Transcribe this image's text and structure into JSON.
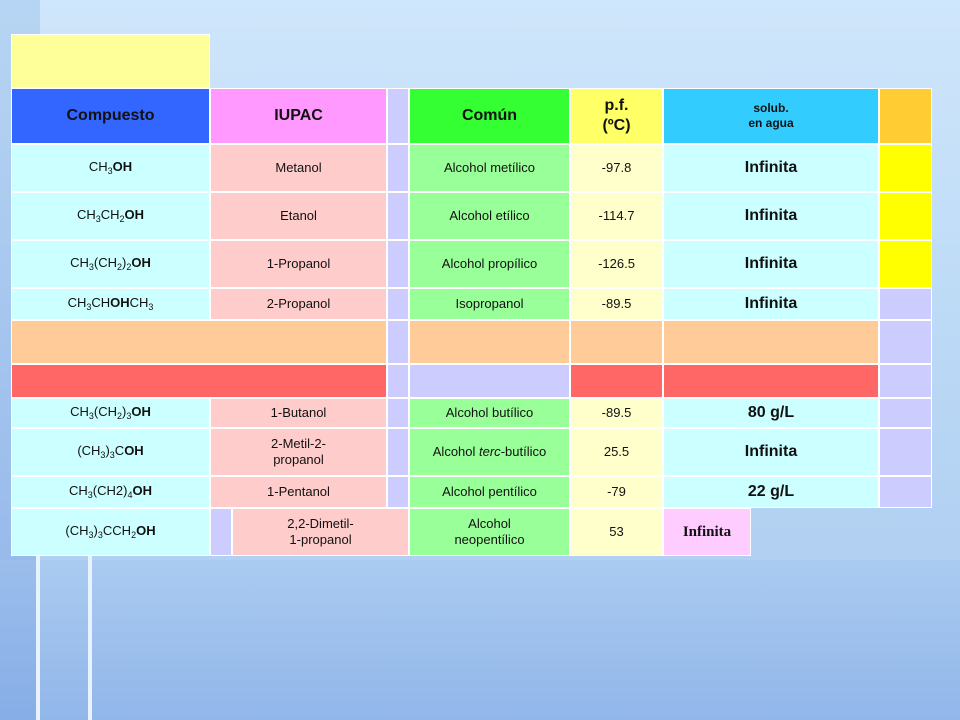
{
  "headers": {
    "compound": "Compuesto",
    "iupac": "IUPAC",
    "common": "Común",
    "mp_line1": "p.f.",
    "mp_line2": "(ºC)",
    "solub_line1": "solub.",
    "solub_line2": "en agua"
  },
  "rows": [
    {
      "formula_html": "CH<sub>3</sub><b>OH</b>",
      "iupac": "Metanol",
      "common": "Alcohol metílico",
      "mp": "-97.8",
      "solub": "Infinita"
    },
    {
      "formula_html": "CH<sub>3</sub>CH<sub>2</sub><b>OH</b>",
      "iupac": "Etanol",
      "common": "Alcohol etílico",
      "mp": "-114.7",
      "solub": "Infinita"
    },
    {
      "formula_html": "CH<sub>3</sub>(CH<sub>2</sub>)<sub>2</sub><b>OH</b>",
      "iupac": "1-Propanol",
      "common": "Alcohol propílico",
      "mp": "-126.5",
      "solub": "Infinita"
    },
    {
      "formula_html": "CH<sub>3</sub>CH<b>OH</b>CH<sub>3</sub>",
      "iupac": "2-Propanol",
      "common": "Isopropanol",
      "mp": "-89.5",
      "solub": "Infinita"
    },
    {
      "formula_html": "CH<sub>3</sub>(CH<sub>2</sub>)<sub>3</sub><b>OH</b>",
      "iupac": "1-Butanol",
      "common": "Alcohol butílico",
      "mp": "-89.5",
      "solub": "80 g/L"
    },
    {
      "formula_html": "(CH<sub>3</sub>)<sub>3</sub>C<b>OH</b>",
      "iupac_line1": "2-Metil-2-",
      "iupac_line2": "propanol",
      "common_html": "Alcohol <i>terc</i>-butílico",
      "mp": "25.5",
      "solub": "Infinita"
    },
    {
      "formula_html": "CH<sub>3</sub>(CH2)<sub>4</sub><b>OH</b>",
      "iupac": "1-Pentanol",
      "common": "Alcohol pentílico",
      "mp": "-79",
      "solub": "22 g/L"
    },
    {
      "formula_html": "(CH<sub>3</sub>)<sub>3</sub>CCH<sub>2</sub><b>OH</b>",
      "iupac_line1": "2,2-Dimetil-",
      "iupac_line2": "1-propanol",
      "common_line1": "Alcohol",
      "common_line2": "neopentílico",
      "mp": "53",
      "solub": "Infinita"
    }
  ],
  "colors": {
    "yellow_pale": "#ffff99",
    "header_blue": "#3366ff",
    "header_pink": "#ff99ff",
    "header_green": "#33ff33",
    "header_yellow": "#ffff66",
    "header_cyan": "#33ccff",
    "header_orange": "#ffcc33",
    "col_cyan": "#ccffff",
    "col_pink": "#ffcccc",
    "col_green": "#99ff99",
    "col_cream": "#ffffcc",
    "col_yellow": "#ffff00",
    "band_peach": "#ffcc99",
    "band_red": "#ff6666",
    "lavender": "#ccccff",
    "magenta_light": "#ffccff"
  }
}
